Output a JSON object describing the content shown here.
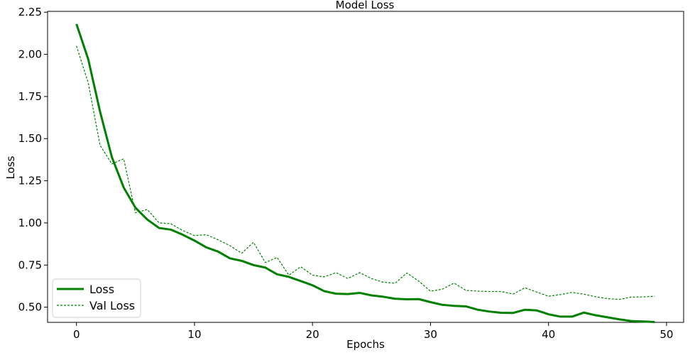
{
  "chart_data": {
    "type": "line",
    "title": "Model Loss",
    "xlabel": "Epochs",
    "ylabel": "Loss",
    "xlim": [
      -2.45,
      51.45
    ],
    "ylim": [
      0.41,
      2.255
    ],
    "xticks": [
      0,
      10,
      20,
      30,
      40,
      50
    ],
    "yticks": [
      0.5,
      0.75,
      1.0,
      1.25,
      1.5,
      1.75,
      2.0,
      2.25
    ],
    "grid": false,
    "legend": "lower-left",
    "x": [
      0,
      1,
      2,
      3,
      4,
      5,
      6,
      7,
      8,
      9,
      10,
      11,
      12,
      13,
      14,
      15,
      16,
      17,
      18,
      19,
      20,
      21,
      22,
      23,
      24,
      25,
      26,
      27,
      28,
      29,
      30,
      31,
      32,
      33,
      34,
      35,
      36,
      37,
      38,
      39,
      40,
      41,
      42,
      43,
      44,
      45,
      46,
      47,
      48,
      49
    ],
    "series": [
      {
        "name": "Loss",
        "color": "#008000",
        "style": "solid",
        "values": [
          2.18,
          1.97,
          1.66,
          1.39,
          1.21,
          1.09,
          1.02,
          0.97,
          0.96,
          0.93,
          0.895,
          0.855,
          0.83,
          0.79,
          0.775,
          0.75,
          0.735,
          0.695,
          0.68,
          0.655,
          0.63,
          0.595,
          0.58,
          0.578,
          0.585,
          0.57,
          0.562,
          0.55,
          0.547,
          0.548,
          0.53,
          0.514,
          0.508,
          0.505,
          0.485,
          0.474,
          0.467,
          0.466,
          0.485,
          0.481,
          0.458,
          0.444,
          0.444,
          0.468,
          0.452,
          0.44,
          0.428,
          0.418,
          0.415,
          0.412
        ]
      },
      {
        "name": "Val Loss",
        "color": "#008000",
        "style": "dashed",
        "values": [
          2.05,
          1.83,
          1.46,
          1.35,
          1.38,
          1.06,
          1.08,
          1.0,
          0.995,
          0.955,
          0.925,
          0.93,
          0.9,
          0.865,
          0.82,
          0.885,
          0.765,
          0.795,
          0.69,
          0.74,
          0.69,
          0.68,
          0.705,
          0.67,
          0.705,
          0.67,
          0.648,
          0.642,
          0.703,
          0.655,
          0.595,
          0.607,
          0.643,
          0.6,
          0.595,
          0.593,
          0.593,
          0.578,
          0.615,
          0.59,
          0.565,
          0.575,
          0.588,
          0.577,
          0.562,
          0.551,
          0.546,
          0.56,
          0.561,
          0.565
        ]
      }
    ]
  }
}
